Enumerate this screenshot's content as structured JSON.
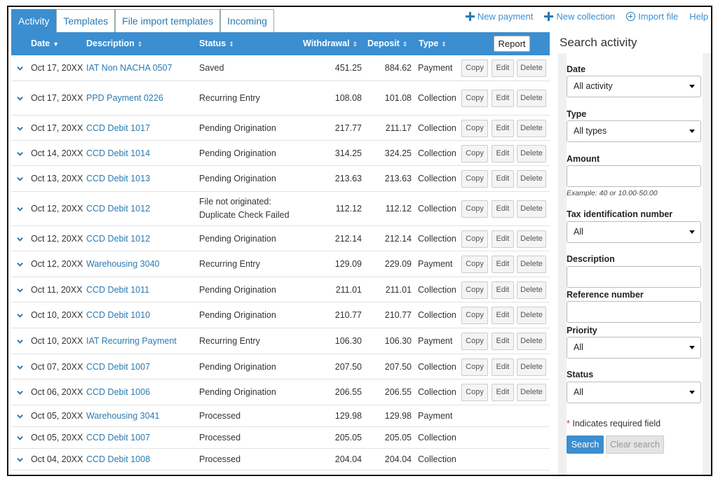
{
  "tabs": [
    {
      "label": "Activity"
    },
    {
      "label": "Templates"
    },
    {
      "label": "File import templates"
    },
    {
      "label": "Incoming"
    }
  ],
  "top_links": {
    "new_payment": "New payment",
    "new_collection": "New collection",
    "import_file": "Import file",
    "help": "Help"
  },
  "table": {
    "headers": {
      "date": "Date",
      "description": "Description",
      "status": "Status",
      "withdrawal": "Withdrawal",
      "deposit": "Deposit",
      "type": "Type"
    },
    "report_label": "Report",
    "action_labels": {
      "copy": "Copy",
      "edit": "Edit",
      "delete": "Delete"
    },
    "rows": [
      {
        "date": "Oct 17, 20XX",
        "description": "IAT Non NACHA 0507",
        "status": "Saved",
        "status2": "",
        "withdrawal": "451.25",
        "deposit": "884.62",
        "type": "Payment"
      },
      {
        "date": "Oct 17, 20XX",
        "description": "PPD Payment 0226",
        "status": "Recurring Entry",
        "status2": "",
        "withdrawal": "108.08",
        "deposit": "101.08",
        "type": "Collection"
      },
      {
        "date": "Oct 17, 20XX",
        "description": "CCD Debit 1017",
        "status": "Pending Origination",
        "status2": "",
        "withdrawal": "217.77",
        "deposit": "211.17",
        "type": "Collection"
      },
      {
        "date": "Oct 14, 20XX",
        "description": "CCD Debit 1014",
        "status": "Pending Origination",
        "status2": "",
        "withdrawal": "314.25",
        "deposit": "324.25",
        "type": "Collection"
      },
      {
        "date": "Oct 13, 20XX",
        "description": "CCD Debit 1013",
        "status": "Pending Origination",
        "status2": "",
        "withdrawal": "213.63",
        "deposit": "213.63",
        "type": "Collection"
      },
      {
        "date": "Oct 12, 20XX",
        "description": "CCD Debit 1012",
        "status": "File not originated:",
        "status2": "Duplicate Check Failed",
        "withdrawal": "112.12",
        "deposit": "112.12",
        "type": "Collection"
      },
      {
        "date": "Oct 12, 20XX",
        "description": "CCD Debit 1012",
        "status": "Pending Origination",
        "status2": "",
        "withdrawal": "212.14",
        "deposit": "212.14",
        "type": "Collection"
      },
      {
        "date": "Oct 12, 20XX",
        "description": "Warehousing 3040",
        "status": "Recurring Entry",
        "status2": "",
        "withdrawal": "129.09",
        "deposit": "229.09",
        "type": "Payment"
      },
      {
        "date": "Oct 11, 20XX",
        "description": "CCD Debit 1011",
        "status": "Pending Origination",
        "status2": "",
        "withdrawal": "211.01",
        "deposit": "211.01",
        "type": "Collection"
      },
      {
        "date": "Oct 10, 20XX",
        "description": "CCD Debit 1010",
        "status": "Pending Origination",
        "status2": "",
        "withdrawal": "210.77",
        "deposit": "210.77",
        "type": "Collection"
      },
      {
        "date": "Oct 10, 20XX",
        "description": "IAT Recurring Payment",
        "status": "Recurring Entry",
        "status2": "",
        "withdrawal": "106.30",
        "deposit": "106.30",
        "type": "Payment"
      },
      {
        "date": "Oct 07, 20XX",
        "description": "CCD Debit 1007",
        "status": "Pending Origination",
        "status2": "",
        "withdrawal": "207.50",
        "deposit": "207.50",
        "type": "Collection"
      },
      {
        "date": "Oct 06, 20XX",
        "description": "CCD Debit 1006",
        "status": "Pending Origination",
        "status2": "",
        "withdrawal": "206.55",
        "deposit": "206.55",
        "type": "Collection"
      },
      {
        "date": "Oct 05, 20XX",
        "description": "Warehousing 3041",
        "status": "Processed",
        "status2": "",
        "withdrawal": "129.98",
        "deposit": "129.98",
        "type": "Payment"
      },
      {
        "date": "Oct 05, 20XX",
        "description": "CCD Debit 1007",
        "status": "Processed",
        "status2": "",
        "withdrawal": "205.05",
        "deposit": "205.05",
        "type": "Collection"
      },
      {
        "date": "Oct 04, 20XX",
        "description": "CCD Debit 1008",
        "status": "Processed",
        "status2": "",
        "withdrawal": "204.04",
        "deposit": "204.04",
        "type": "Collection"
      }
    ]
  },
  "search_panel": {
    "title": "Search activity",
    "date_label": "Date",
    "date_value": "All activity",
    "type_label": "Type",
    "type_value": "All types",
    "amount_label": "Amount",
    "amount_hint": "Example: 40 or 10.00-50.00",
    "tin_label": "Tax identification number",
    "tin_value": "All",
    "description_label": "Description",
    "reference_label": "Reference number",
    "priority_label": "Priority",
    "priority_value": "All",
    "status_label": "Status",
    "status_value": "All",
    "required_note": "Indicates required field",
    "search_label": "Search",
    "clear_label": "Clear search"
  },
  "colors": {
    "accent": "#3b8ed0",
    "link": "#2a7ab0"
  }
}
